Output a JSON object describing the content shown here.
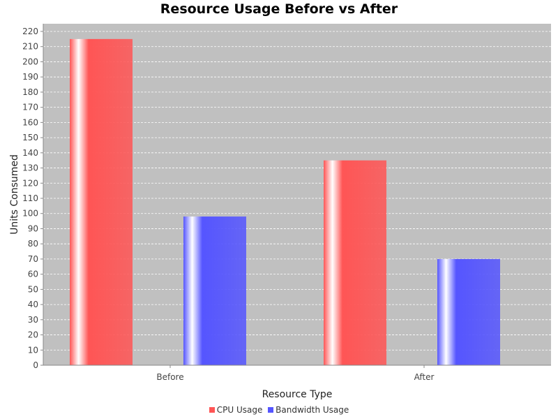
{
  "chart_data": {
    "type": "bar",
    "title": "Resource Usage Before vs After",
    "xlabel": "Resource Type",
    "ylabel": "Units Consumed",
    "categories": [
      "Before",
      "After"
    ],
    "series": [
      {
        "name": "CPU Usage",
        "color": "#ff5555",
        "values": [
          215,
          135
        ]
      },
      {
        "name": "Bandwidth Usage",
        "color": "#5555ff",
        "values": [
          98,
          70
        ]
      }
    ],
    "ylim": [
      0,
      220
    ],
    "yticks": [
      0,
      10,
      20,
      30,
      40,
      50,
      60,
      70,
      80,
      90,
      100,
      110,
      120,
      130,
      140,
      150,
      160,
      170,
      180,
      190,
      200,
      210,
      220
    ],
    "grid": true,
    "legend": "bottom-center",
    "plot_background": "#c0c0c0"
  }
}
